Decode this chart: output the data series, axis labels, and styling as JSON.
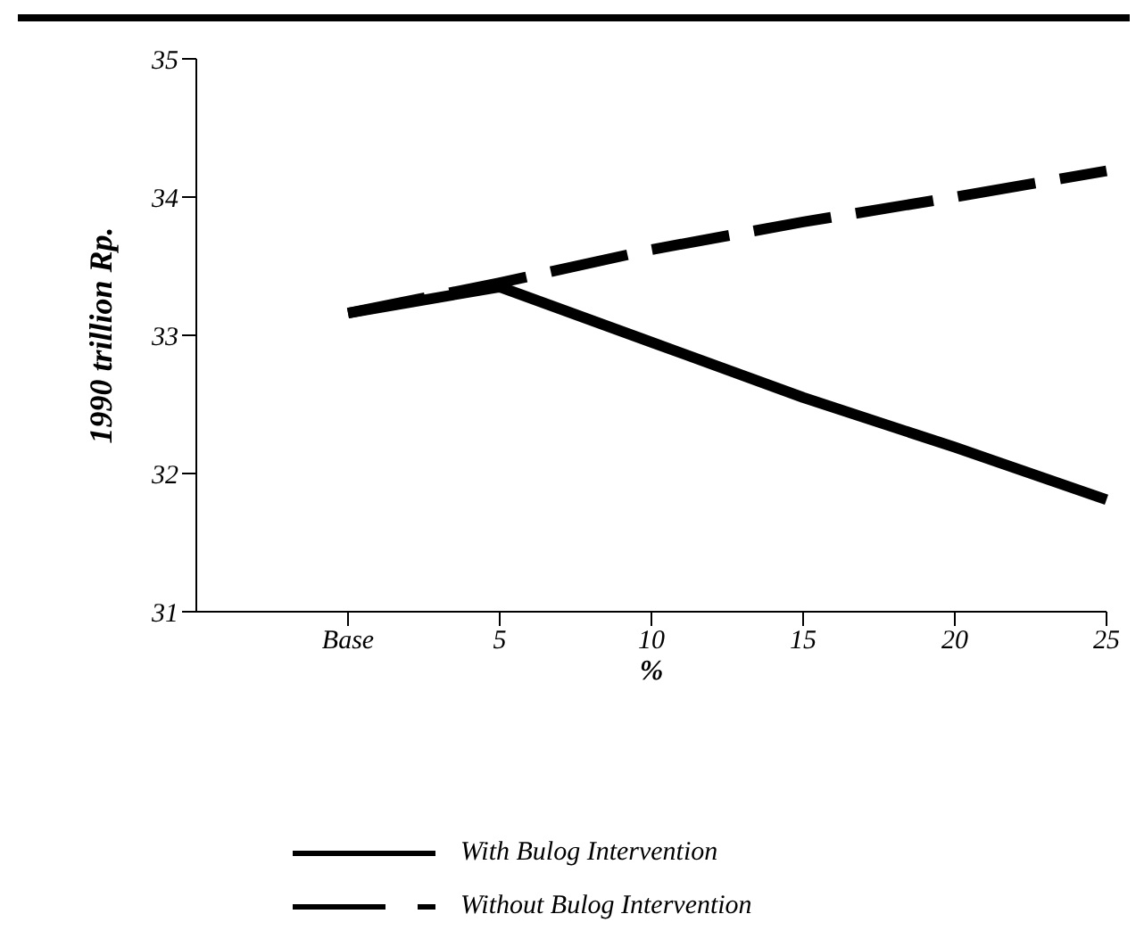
{
  "chart_data": {
    "type": "line",
    "xlabel": "%",
    "ylabel": "1990 trillion Rp.",
    "categories": [
      "Base",
      "5",
      "10",
      "15",
      "20",
      "25"
    ],
    "series": [
      {
        "name": "With Bulog Intervention",
        "color": "#000000",
        "line_style": "solid",
        "values": [
          33.16,
          33.35,
          32.95,
          32.55,
          32.19,
          31.81
        ]
      },
      {
        "name": "Without Bulog Intervention",
        "color": "#000000",
        "line_style": "dashed",
        "values": [
          33.16,
          33.38,
          33.62,
          33.82,
          34.0,
          34.19
        ]
      }
    ],
    "ylim": [
      31,
      35
    ],
    "yticks": [
      31,
      32,
      33,
      34,
      35
    ],
    "grid": false,
    "legend": "bottom",
    "marker": "none"
  }
}
